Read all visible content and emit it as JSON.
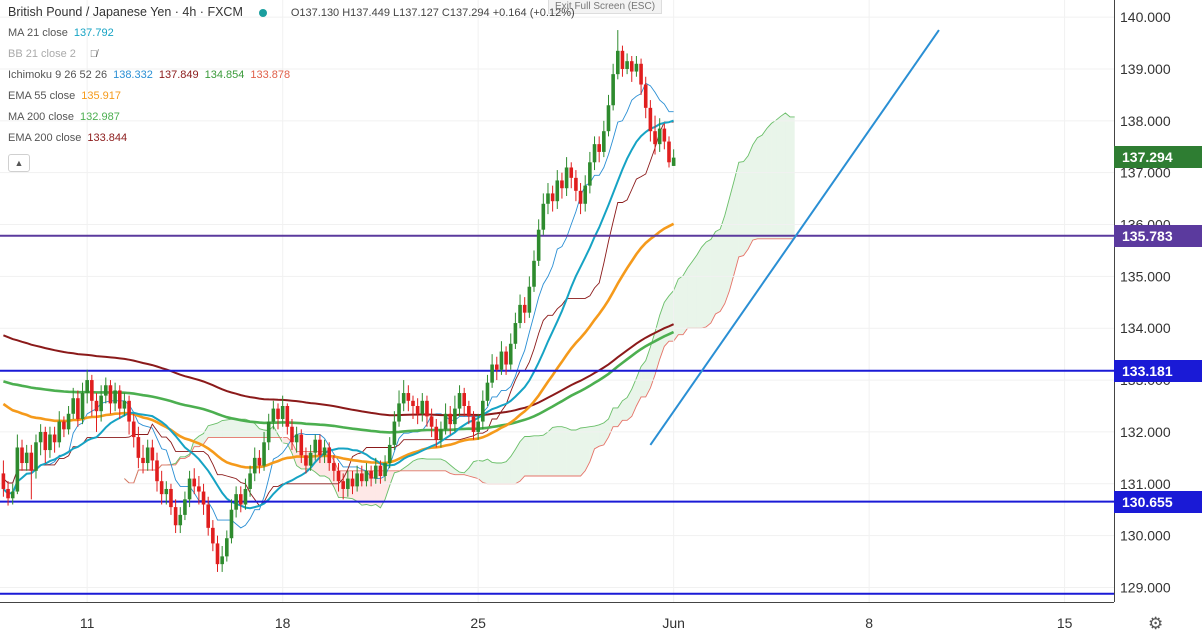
{
  "header": {
    "symbol": "British Pound / Japanese Yen · 4h · FXCM",
    "ohlc": "O137.130 H137.449 L137.127 C137.294 +0.164 (+0.12%)",
    "exit_fullscreen": "Exit Full Screen (ESC)"
  },
  "indicators": [
    {
      "label": "MA 21 close",
      "values": [
        "137.792"
      ],
      "colors": [
        "#16a3c4"
      ]
    },
    {
      "label": "BB 21 close 2",
      "values": [],
      "colors": [],
      "hidden": true
    },
    {
      "label": "Ichimoku 9 26 52 26",
      "values": [
        "138.332",
        "137.849",
        "134.854",
        "133.878"
      ],
      "colors": [
        "#2a8fd4",
        "#8b1a1a",
        "#3b9b3b",
        "#e0604a"
      ]
    },
    {
      "label": "EMA 55 close",
      "values": [
        "135.917"
      ],
      "colors": [
        "#f59a1b"
      ]
    },
    {
      "label": "MA 200 close",
      "values": [
        "132.987"
      ],
      "colors": [
        "#4caf50"
      ]
    },
    {
      "label": "EMA 200 close",
      "values": [
        "133.844"
      ],
      "colors": [
        "#8b1a1a"
      ]
    }
  ],
  "price_tags": [
    {
      "text": "137.294",
      "price": 137.294,
      "color": "#2e7d32"
    },
    {
      "text": "135.783",
      "price": 135.783,
      "color": "#5b3a9e"
    },
    {
      "text": "133.181",
      "price": 133.181,
      "color": "#1a1ad6"
    },
    {
      "text": "130.655",
      "price": 130.655,
      "color": "#1a1ad6"
    }
  ],
  "collapse_icon": "chevron-up-icon",
  "settings_icon": "gear-icon",
  "chart_data": {
    "type": "candlestick",
    "y_ticks": [
      129,
      130,
      131,
      132,
      133,
      134,
      135,
      136,
      137,
      138,
      139,
      140
    ],
    "y_tick_labels": [
      "129.000",
      "130.000",
      "131.000",
      "132.000",
      "133.000",
      "134.000",
      "135.000",
      "136.000",
      "137.000",
      "138.000",
      "139.000",
      "140.000"
    ],
    "ylim": [
      128.72,
      140.33
    ],
    "x_ticks": [
      {
        "label": "11",
        "bar": 18
      },
      {
        "label": "18",
        "bar": 60
      },
      {
        "label": "25",
        "bar": 102
      },
      {
        "label": "Jun",
        "bar": 144
      },
      {
        "label": "8",
        "bar": 186
      },
      {
        "label": "15",
        "bar": 228
      }
    ],
    "horizontal_lines": [
      {
        "price": 135.783,
        "color": "#5b3a9e"
      },
      {
        "price": 133.181,
        "color": "#1a1ad6"
      },
      {
        "price": 130.655,
        "color": "#1a1ad6"
      },
      {
        "price": 128.88,
        "color": "#1a1ad6"
      }
    ],
    "trendline": {
      "from": {
        "bar": 139,
        "price": 131.75
      },
      "to": {
        "bar": 201,
        "price": 139.75
      },
      "color": "#2a8fd4"
    },
    "colors": {
      "up": "#2e8b2e",
      "down": "#e01e1e"
    },
    "candles": [
      [
        131.2,
        130.9,
        131.45,
        130.75
      ],
      [
        130.9,
        130.72,
        131.05,
        130.58
      ],
      [
        130.72,
        130.85,
        131.0,
        130.6
      ],
      [
        130.85,
        131.7,
        131.95,
        130.8
      ],
      [
        131.7,
        131.4,
        131.85,
        131.25
      ],
      [
        131.4,
        131.6,
        131.75,
        131.25
      ],
      [
        131.6,
        131.25,
        131.75,
        130.7
      ],
      [
        131.25,
        131.8,
        131.95,
        131.1
      ],
      [
        131.8,
        132.0,
        132.15,
        131.55
      ],
      [
        132.0,
        131.65,
        132.1,
        131.4
      ],
      [
        131.65,
        131.95,
        132.1,
        131.5
      ],
      [
        131.95,
        131.8,
        132.1,
        131.6
      ],
      [
        131.8,
        132.2,
        132.4,
        131.7
      ],
      [
        132.2,
        132.05,
        132.3,
        131.9
      ],
      [
        132.05,
        132.35,
        132.5,
        131.95
      ],
      [
        132.35,
        132.65,
        132.85,
        132.25
      ],
      [
        132.65,
        132.25,
        132.8,
        132.1
      ],
      [
        132.25,
        132.75,
        132.95,
        132.15
      ],
      [
        132.75,
        133.0,
        133.2,
        132.55
      ],
      [
        133.0,
        132.6,
        133.1,
        132.3
      ],
      [
        132.6,
        132.4,
        132.75,
        132.0
      ],
      [
        132.4,
        132.7,
        132.9,
        132.2
      ],
      [
        132.7,
        132.9,
        133.05,
        132.55
      ],
      [
        132.9,
        132.55,
        133.0,
        132.35
      ],
      [
        132.55,
        132.8,
        132.95,
        132.4
      ],
      [
        132.8,
        132.45,
        132.9,
        132.25
      ],
      [
        132.45,
        132.6,
        132.75,
        132.3
      ],
      [
        132.6,
        132.2,
        132.7,
        131.95
      ],
      [
        132.2,
        131.9,
        132.35,
        131.7
      ],
      [
        131.9,
        131.5,
        132.1,
        131.3
      ],
      [
        131.5,
        131.4,
        131.75,
        131.2
      ],
      [
        131.4,
        131.7,
        131.85,
        131.25
      ],
      [
        131.7,
        131.45,
        131.85,
        131.25
      ],
      [
        131.45,
        131.05,
        131.6,
        130.85
      ],
      [
        131.05,
        130.8,
        131.25,
        130.6
      ],
      [
        130.8,
        130.9,
        131.05,
        130.6
      ],
      [
        130.9,
        130.55,
        131.0,
        130.4
      ],
      [
        130.55,
        130.2,
        130.7,
        130.05
      ],
      [
        130.2,
        130.4,
        130.55,
        130.05
      ],
      [
        130.4,
        130.7,
        130.85,
        130.3
      ],
      [
        130.7,
        131.1,
        131.25,
        130.55
      ],
      [
        131.1,
        130.95,
        131.3,
        130.8
      ],
      [
        130.95,
        130.85,
        131.15,
        130.6
      ],
      [
        130.85,
        130.6,
        131.0,
        130.4
      ],
      [
        130.6,
        130.15,
        130.75,
        130.0
      ],
      [
        130.15,
        129.85,
        130.3,
        129.7
      ],
      [
        129.85,
        129.45,
        130.0,
        129.3
      ],
      [
        129.45,
        129.6,
        129.8,
        129.3
      ],
      [
        129.6,
        129.95,
        130.1,
        129.5
      ],
      [
        129.95,
        130.5,
        130.7,
        129.85
      ],
      [
        130.5,
        130.8,
        130.95,
        130.35
      ],
      [
        130.8,
        130.6,
        130.95,
        130.45
      ],
      [
        130.6,
        130.9,
        131.1,
        130.5
      ],
      [
        130.9,
        131.2,
        131.35,
        130.75
      ],
      [
        131.2,
        131.5,
        131.7,
        131.05
      ],
      [
        131.5,
        131.35,
        131.65,
        131.2
      ],
      [
        131.35,
        131.8,
        132.0,
        131.25
      ],
      [
        131.8,
        132.2,
        132.35,
        131.65
      ],
      [
        132.2,
        132.45,
        132.6,
        132.05
      ],
      [
        132.45,
        132.25,
        132.55,
        132.05
      ],
      [
        132.25,
        132.5,
        132.7,
        132.1
      ],
      [
        132.5,
        132.1,
        132.55,
        131.95
      ],
      [
        132.1,
        131.8,
        132.25,
        131.65
      ],
      [
        131.8,
        131.95,
        132.1,
        131.6
      ],
      [
        131.95,
        131.55,
        132.05,
        131.4
      ],
      [
        131.55,
        131.35,
        131.7,
        131.2
      ],
      [
        131.35,
        131.6,
        131.75,
        131.25
      ],
      [
        131.6,
        131.85,
        131.95,
        131.45
      ],
      [
        131.85,
        131.55,
        131.95,
        131.4
      ],
      [
        131.55,
        131.7,
        131.85,
        131.4
      ],
      [
        131.7,
        131.4,
        131.8,
        131.25
      ],
      [
        131.4,
        131.25,
        131.55,
        131.05
      ],
      [
        131.25,
        131.05,
        131.4,
        130.85
      ],
      [
        131.05,
        130.9,
        131.2,
        130.7
      ],
      [
        130.9,
        131.1,
        131.25,
        130.75
      ],
      [
        131.1,
        130.95,
        131.25,
        130.8
      ],
      [
        130.95,
        131.2,
        131.35,
        130.85
      ],
      [
        131.2,
        131.05,
        131.35,
        130.95
      ],
      [
        131.05,
        131.25,
        131.4,
        130.95
      ],
      [
        131.25,
        131.1,
        131.35,
        130.95
      ],
      [
        131.1,
        131.35,
        131.5,
        131.0
      ],
      [
        131.35,
        131.15,
        131.45,
        131.0
      ],
      [
        131.15,
        131.4,
        131.55,
        131.05
      ],
      [
        131.4,
        131.75,
        131.9,
        131.3
      ],
      [
        131.75,
        132.2,
        132.4,
        131.65
      ],
      [
        132.2,
        132.55,
        132.8,
        132.1
      ],
      [
        132.55,
        132.75,
        133.0,
        132.4
      ],
      [
        132.75,
        132.6,
        132.9,
        132.4
      ],
      [
        132.6,
        132.5,
        132.7,
        132.25
      ],
      [
        132.5,
        132.35,
        132.65,
        132.15
      ],
      [
        132.35,
        132.6,
        132.75,
        132.2
      ],
      [
        132.6,
        132.3,
        132.7,
        132.1
      ],
      [
        132.3,
        132.1,
        132.45,
        131.9
      ],
      [
        132.1,
        131.85,
        132.25,
        131.7
      ],
      [
        131.85,
        132.05,
        132.2,
        131.7
      ],
      [
        132.05,
        132.35,
        132.55,
        131.95
      ],
      [
        132.35,
        132.15,
        132.5,
        131.95
      ],
      [
        132.15,
        132.45,
        132.7,
        132.0
      ],
      [
        132.45,
        132.75,
        132.9,
        132.3
      ],
      [
        132.75,
        132.5,
        132.85,
        132.3
      ],
      [
        132.5,
        132.3,
        132.6,
        132.15
      ],
      [
        132.3,
        132.0,
        132.4,
        131.85
      ],
      [
        132.0,
        132.2,
        132.35,
        131.85
      ],
      [
        132.2,
        132.6,
        132.8,
        132.05
      ],
      [
        132.6,
        132.95,
        133.1,
        132.5
      ],
      [
        132.95,
        133.3,
        133.5,
        132.85
      ],
      [
        133.3,
        133.2,
        133.45,
        133.0
      ],
      [
        133.2,
        133.55,
        133.75,
        133.1
      ],
      [
        133.55,
        133.3,
        133.65,
        133.1
      ],
      [
        133.3,
        133.7,
        133.9,
        133.2
      ],
      [
        133.7,
        134.1,
        134.3,
        133.6
      ],
      [
        134.1,
        134.45,
        134.65,
        134.0
      ],
      [
        134.45,
        134.3,
        134.6,
        134.1
      ],
      [
        134.3,
        134.8,
        135.0,
        134.2
      ],
      [
        134.8,
        135.3,
        135.5,
        134.7
      ],
      [
        135.3,
        135.9,
        136.1,
        135.2
      ],
      [
        135.9,
        136.4,
        136.6,
        135.8
      ],
      [
        136.4,
        136.6,
        136.8,
        136.2
      ],
      [
        136.6,
        136.45,
        136.75,
        136.25
      ],
      [
        136.45,
        136.85,
        137.05,
        136.3
      ],
      [
        136.85,
        136.7,
        137.0,
        136.5
      ],
      [
        136.7,
        137.1,
        137.3,
        136.55
      ],
      [
        137.1,
        136.9,
        137.2,
        136.7
      ],
      [
        136.9,
        136.65,
        137.05,
        136.45
      ],
      [
        136.65,
        136.4,
        136.8,
        136.2
      ],
      [
        136.4,
        136.75,
        136.95,
        136.25
      ],
      [
        136.75,
        137.2,
        137.4,
        136.6
      ],
      [
        137.2,
        137.55,
        137.7,
        137.05
      ],
      [
        137.55,
        137.4,
        137.7,
        137.2
      ],
      [
        137.4,
        137.8,
        138.0,
        137.3
      ],
      [
        137.8,
        138.3,
        138.5,
        137.7
      ],
      [
        138.3,
        138.9,
        139.1,
        138.2
      ],
      [
        138.9,
        139.35,
        139.75,
        138.8
      ],
      [
        139.35,
        139.0,
        139.45,
        138.85
      ],
      [
        139.0,
        139.15,
        139.3,
        138.9
      ],
      [
        139.15,
        138.95,
        139.25,
        138.75
      ],
      [
        138.95,
        139.1,
        139.25,
        138.85
      ],
      [
        139.1,
        138.7,
        139.2,
        138.5
      ],
      [
        138.7,
        138.25,
        138.85,
        138.05
      ],
      [
        138.25,
        137.8,
        138.4,
        137.6
      ],
      [
        137.8,
        137.55,
        138.1,
        137.35
      ],
      [
        137.55,
        137.85,
        138.05,
        137.4
      ],
      [
        137.85,
        137.6,
        137.95,
        137.45
      ],
      [
        137.6,
        137.2,
        137.7,
        137.1
      ],
      [
        137.13,
        137.29,
        137.45,
        137.13
      ]
    ]
  }
}
